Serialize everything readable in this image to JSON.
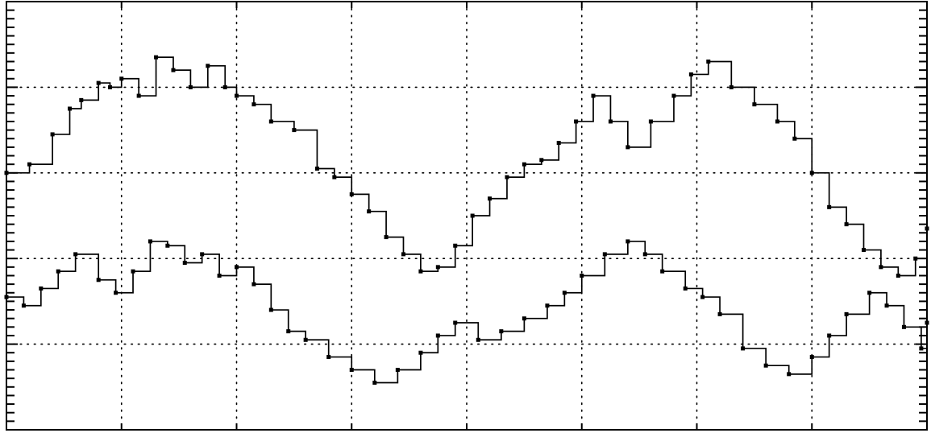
{
  "chart_data": {
    "type": "line",
    "title": "",
    "xlabel": "",
    "ylabel": "",
    "grid": true,
    "grid_style": "dotted",
    "ticks_labeled": false,
    "x_major_divisions": 8,
    "y_major_divisions": 5,
    "xlim": [
      0,
      8
    ],
    "ylim": [
      0,
      5
    ],
    "line_color": "#000000",
    "background_color": "#ffffff",
    "series": [
      {
        "x": [
          0.0,
          0.2,
          0.4,
          0.55,
          0.65,
          0.8,
          0.9,
          1.0,
          1.15,
          1.3,
          1.45,
          1.6,
          1.75,
          1.9,
          2.0,
          2.15,
          2.3,
          2.5,
          2.7,
          2.85,
          3.0,
          3.15,
          3.3,
          3.45,
          3.6,
          3.75,
          3.9,
          4.05,
          4.2,
          4.35,
          4.5,
          4.65,
          4.8,
          4.95,
          5.1,
          5.25,
          5.4,
          5.6,
          5.8,
          5.95,
          6.1,
          6.3,
          6.5,
          6.7,
          6.85,
          7.0,
          7.15,
          7.3,
          7.45,
          7.6,
          7.75,
          7.9,
          8.0
        ],
        "y": [
          3.0,
          3.1,
          3.45,
          3.75,
          3.85,
          4.05,
          4.0,
          4.1,
          3.9,
          4.35,
          4.2,
          4.0,
          4.25,
          4.0,
          3.9,
          3.8,
          3.6,
          3.5,
          3.05,
          2.95,
          2.75,
          2.55,
          2.25,
          2.05,
          1.85,
          1.9,
          2.15,
          2.5,
          2.7,
          2.95,
          3.1,
          3.15,
          3.35,
          3.6,
          3.9,
          3.6,
          3.3,
          3.6,
          3.9,
          4.15,
          4.3,
          4.0,
          3.8,
          3.6,
          3.4,
          3.0,
          2.6,
          2.4,
          2.1,
          1.9,
          1.8,
          2.0,
          2.35
        ]
      },
      {
        "x": [
          0.0,
          0.15,
          0.3,
          0.45,
          0.6,
          0.8,
          0.95,
          1.1,
          1.25,
          1.4,
          1.55,
          1.7,
          1.85,
          2.0,
          2.15,
          2.3,
          2.45,
          2.6,
          2.8,
          3.0,
          3.2,
          3.4,
          3.6,
          3.75,
          3.9,
          4.1,
          4.3,
          4.5,
          4.7,
          4.85,
          5.0,
          5.2,
          5.4,
          5.55,
          5.7,
          5.9,
          6.05,
          6.2,
          6.4,
          6.6,
          6.8,
          7.0,
          7.15,
          7.3,
          7.5,
          7.65,
          7.8,
          7.95,
          8.0
        ],
        "y": [
          1.55,
          1.45,
          1.65,
          1.85,
          2.05,
          1.75,
          1.6,
          1.85,
          2.2,
          2.15,
          1.95,
          2.05,
          1.8,
          1.9,
          1.7,
          1.4,
          1.15,
          1.05,
          0.85,
          0.7,
          0.55,
          0.7,
          0.9,
          1.1,
          1.25,
          1.05,
          1.15,
          1.3,
          1.45,
          1.6,
          1.8,
          2.05,
          2.2,
          2.05,
          1.85,
          1.65,
          1.55,
          1.35,
          0.95,
          0.75,
          0.65,
          0.85,
          1.1,
          1.35,
          1.6,
          1.45,
          1.2,
          0.95,
          1.25
        ]
      }
    ]
  }
}
